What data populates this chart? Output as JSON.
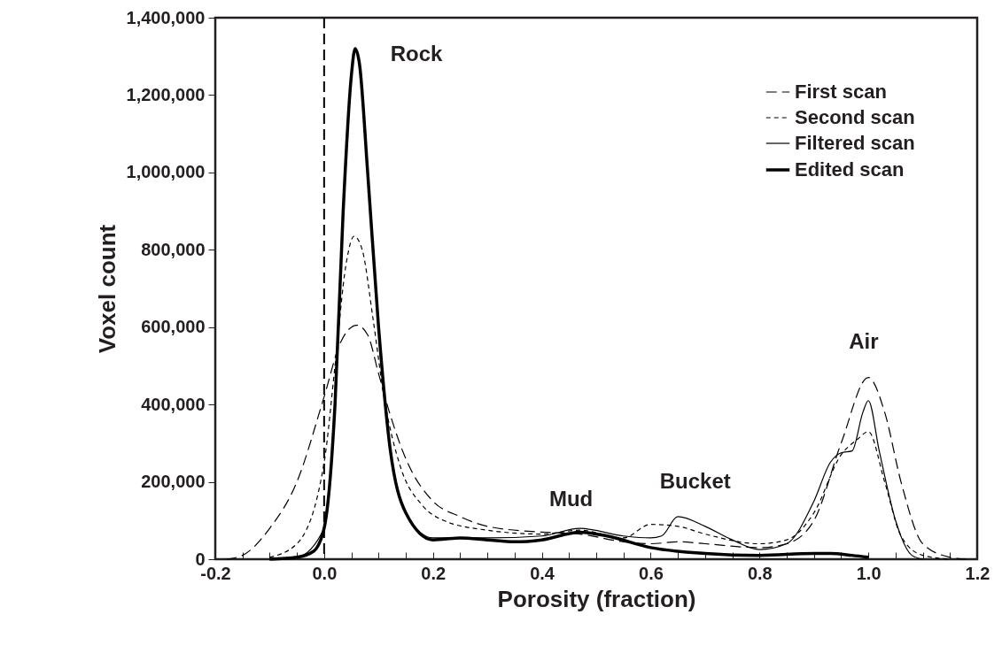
{
  "chart_data": {
    "type": "line",
    "xlabel": "Porosity (fraction)",
    "ylabel": "Voxel count",
    "xlim": [
      -0.2,
      1.2
    ],
    "xticks": [
      {
        "value": -0.2,
        "label": "-0.2"
      },
      {
        "value": -0.15,
        "label": null
      },
      {
        "value": -0.1,
        "label": null
      },
      {
        "value": -0.05,
        "label": null
      },
      {
        "value": 0,
        "label": "0.0"
      },
      {
        "value": 0.05,
        "label": null
      },
      {
        "value": 0.1,
        "label": null
      },
      {
        "value": 0.15,
        "label": null
      },
      {
        "value": 0.2,
        "label": "0.2"
      },
      {
        "value": 0.25,
        "label": null
      },
      {
        "value": 0.3,
        "label": null
      },
      {
        "value": 0.35,
        "label": null
      },
      {
        "value": 0.4,
        "label": "0.4"
      },
      {
        "value": 0.45,
        "label": null
      },
      {
        "value": 0.5,
        "label": null
      },
      {
        "value": 0.55,
        "label": null
      },
      {
        "value": 0.6,
        "label": "0.6"
      },
      {
        "value": 0.65,
        "label": null
      },
      {
        "value": 0.7,
        "label": null
      },
      {
        "value": 0.75,
        "label": null
      },
      {
        "value": 0.8,
        "label": "0.8"
      },
      {
        "value": 0.85,
        "label": null
      },
      {
        "value": 0.9,
        "label": null
      },
      {
        "value": 0.95,
        "label": null
      },
      {
        "value": 1,
        "label": "1.0"
      },
      {
        "value": 1.05,
        "label": null
      },
      {
        "value": 1.1,
        "label": null
      },
      {
        "value": 1.15,
        "label": null
      },
      {
        "value": 1.2,
        "label": "1.2"
      }
    ],
    "ylim": [
      0,
      1400000
    ],
    "yticks": [
      {
        "value": 0,
        "label": "0"
      },
      {
        "value": 200000,
        "label": "200,000"
      },
      {
        "value": 400000,
        "label": "400,000"
      },
      {
        "value": 600000,
        "label": "600,000"
      },
      {
        "value": 800000,
        "label": "800,000"
      },
      {
        "value": 1000000,
        "label": "1,000,000"
      },
      {
        "value": 1200000,
        "label": "1,200,000"
      },
      {
        "value": 1400000,
        "label": "1,400,000"
      }
    ],
    "legend": "top right",
    "grid": false,
    "series": [
      {
        "name": "First scan",
        "color": "#000000",
        "line_style": "dashed",
        "x": [
          -0.18,
          -0.15,
          -0.1,
          -0.05,
          0,
          0.03,
          0.06,
          0.08,
          0.1,
          0.12,
          0.15,
          0.2,
          0.25,
          0.3,
          0.4,
          0.47,
          0.55,
          0.6,
          0.65,
          0.7,
          0.8,
          0.85,
          0.9,
          0.95,
          1,
          1.03,
          1.06,
          1.1,
          1.15,
          1.18
        ],
        "values": [
          0,
          10000,
          80000,
          200000,
          420000,
          560000,
          605000,
          580000,
          480000,
          380000,
          260000,
          150000,
          110000,
          85000,
          70000,
          65000,
          45000,
          40000,
          45000,
          40000,
          30000,
          40000,
          100000,
          300000,
          470000,
          380000,
          200000,
          40000,
          5000,
          0
        ]
      },
      {
        "name": "Second scan",
        "color": "#000000",
        "line_style": "dotted",
        "x": [
          -0.1,
          -0.05,
          0,
          0.02,
          0.04,
          0.055,
          0.07,
          0.09,
          0.11,
          0.14,
          0.18,
          0.22,
          0.3,
          0.4,
          0.47,
          0.55,
          0.6,
          0.65,
          0.7,
          0.8,
          0.85,
          0.9,
          0.95,
          0.98,
          1,
          1.03,
          1.06,
          1.1,
          1.15
        ],
        "values": [
          5000,
          40000,
          250000,
          500000,
          760000,
          835000,
          800000,
          620000,
          420000,
          240000,
          140000,
          100000,
          75000,
          65000,
          75000,
          55000,
          90000,
          85000,
          65000,
          40000,
          50000,
          120000,
          270000,
          310000,
          330000,
          200000,
          60000,
          10000,
          0
        ]
      },
      {
        "name": "Filtered scan",
        "color": "#000000",
        "line_style": "solid",
        "x": [
          -0.1,
          -0.05,
          0,
          0.02,
          0.035,
          0.05,
          0.057,
          0.065,
          0.08,
          0.1,
          0.12,
          0.15,
          0.2,
          0.3,
          0.4,
          0.47,
          0.55,
          0.6,
          0.62,
          0.65,
          0.7,
          0.75,
          0.8,
          0.85,
          0.9,
          0.93,
          0.95,
          0.97,
          0.99,
          1,
          1.02,
          1.05,
          1.08,
          1.1
        ],
        "values": [
          0,
          5000,
          80000,
          400000,
          900000,
          1250000,
          1320000,
          1280000,
          1000000,
          600000,
          300000,
          120000,
          55000,
          55000,
          60000,
          80000,
          60000,
          55000,
          60000,
          110000,
          85000,
          50000,
          25000,
          40000,
          150000,
          250000,
          275000,
          280000,
          380000,
          410000,
          280000,
          100000,
          10000,
          0
        ]
      },
      {
        "name": "Edited scan",
        "color": "#000000",
        "line_style": "solid",
        "x": [
          -0.1,
          -0.05,
          -0.02,
          0,
          0.02,
          0.035,
          0.05,
          0.057,
          0.065,
          0.08,
          0.1,
          0.12,
          0.15,
          0.2,
          0.25,
          0.3,
          0.35,
          0.4,
          0.47,
          0.52,
          0.6,
          0.7,
          0.8,
          0.9,
          0.93,
          0.97,
          1
        ],
        "values": [
          0,
          5000,
          20000,
          80000,
          400000,
          900000,
          1250000,
          1320000,
          1280000,
          1000000,
          600000,
          300000,
          120000,
          50000,
          55000,
          50000,
          45000,
          50000,
          70000,
          60000,
          30000,
          15000,
          10000,
          15000,
          15000,
          10000,
          5000
        ]
      }
    ],
    "ref_lines": [
      {
        "axis": "x",
        "value": 0,
        "line_style": "dashed",
        "color": "#000000"
      }
    ],
    "annotations": [
      "Rock",
      "Mud",
      "Bucket",
      "Air"
    ]
  }
}
